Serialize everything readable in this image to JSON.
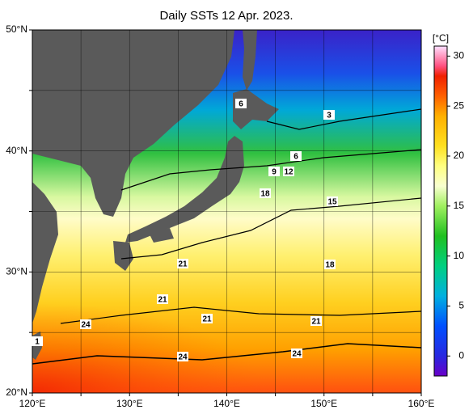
{
  "title": "Daily SSTs 12 Apr. 2023.",
  "map": {
    "lonlim": [
      120,
      160
    ],
    "latlim": [
      20,
      50
    ],
    "lon_ticks": [
      {
        "value": 120,
        "label": "120°E"
      },
      {
        "value": 130,
        "label": "130°E"
      },
      {
        "value": 140,
        "label": "140°E"
      },
      {
        "value": 150,
        "label": "150°E"
      },
      {
        "value": 160,
        "label": "160°E"
      }
    ],
    "lat_ticks": [
      {
        "value": 20,
        "label": "20°N"
      },
      {
        "value": 30,
        "label": "30°N"
      },
      {
        "value": 40,
        "label": "40°N"
      },
      {
        "value": 50,
        "label": "50°N"
      }
    ],
    "lon_minor": [
      125,
      135,
      145,
      155
    ],
    "lat_minor": [
      25,
      35,
      45
    ],
    "contour_labels": [
      6,
      3,
      6,
      9,
      12,
      18,
      15,
      21,
      21,
      18,
      21,
      21,
      24,
      1,
      24,
      24
    ]
  },
  "colorbar": {
    "unit": "[°C]",
    "lim": [
      -2,
      31
    ],
    "ticks": [
      0,
      5,
      10,
      15,
      20,
      25,
      30
    ]
  }
}
